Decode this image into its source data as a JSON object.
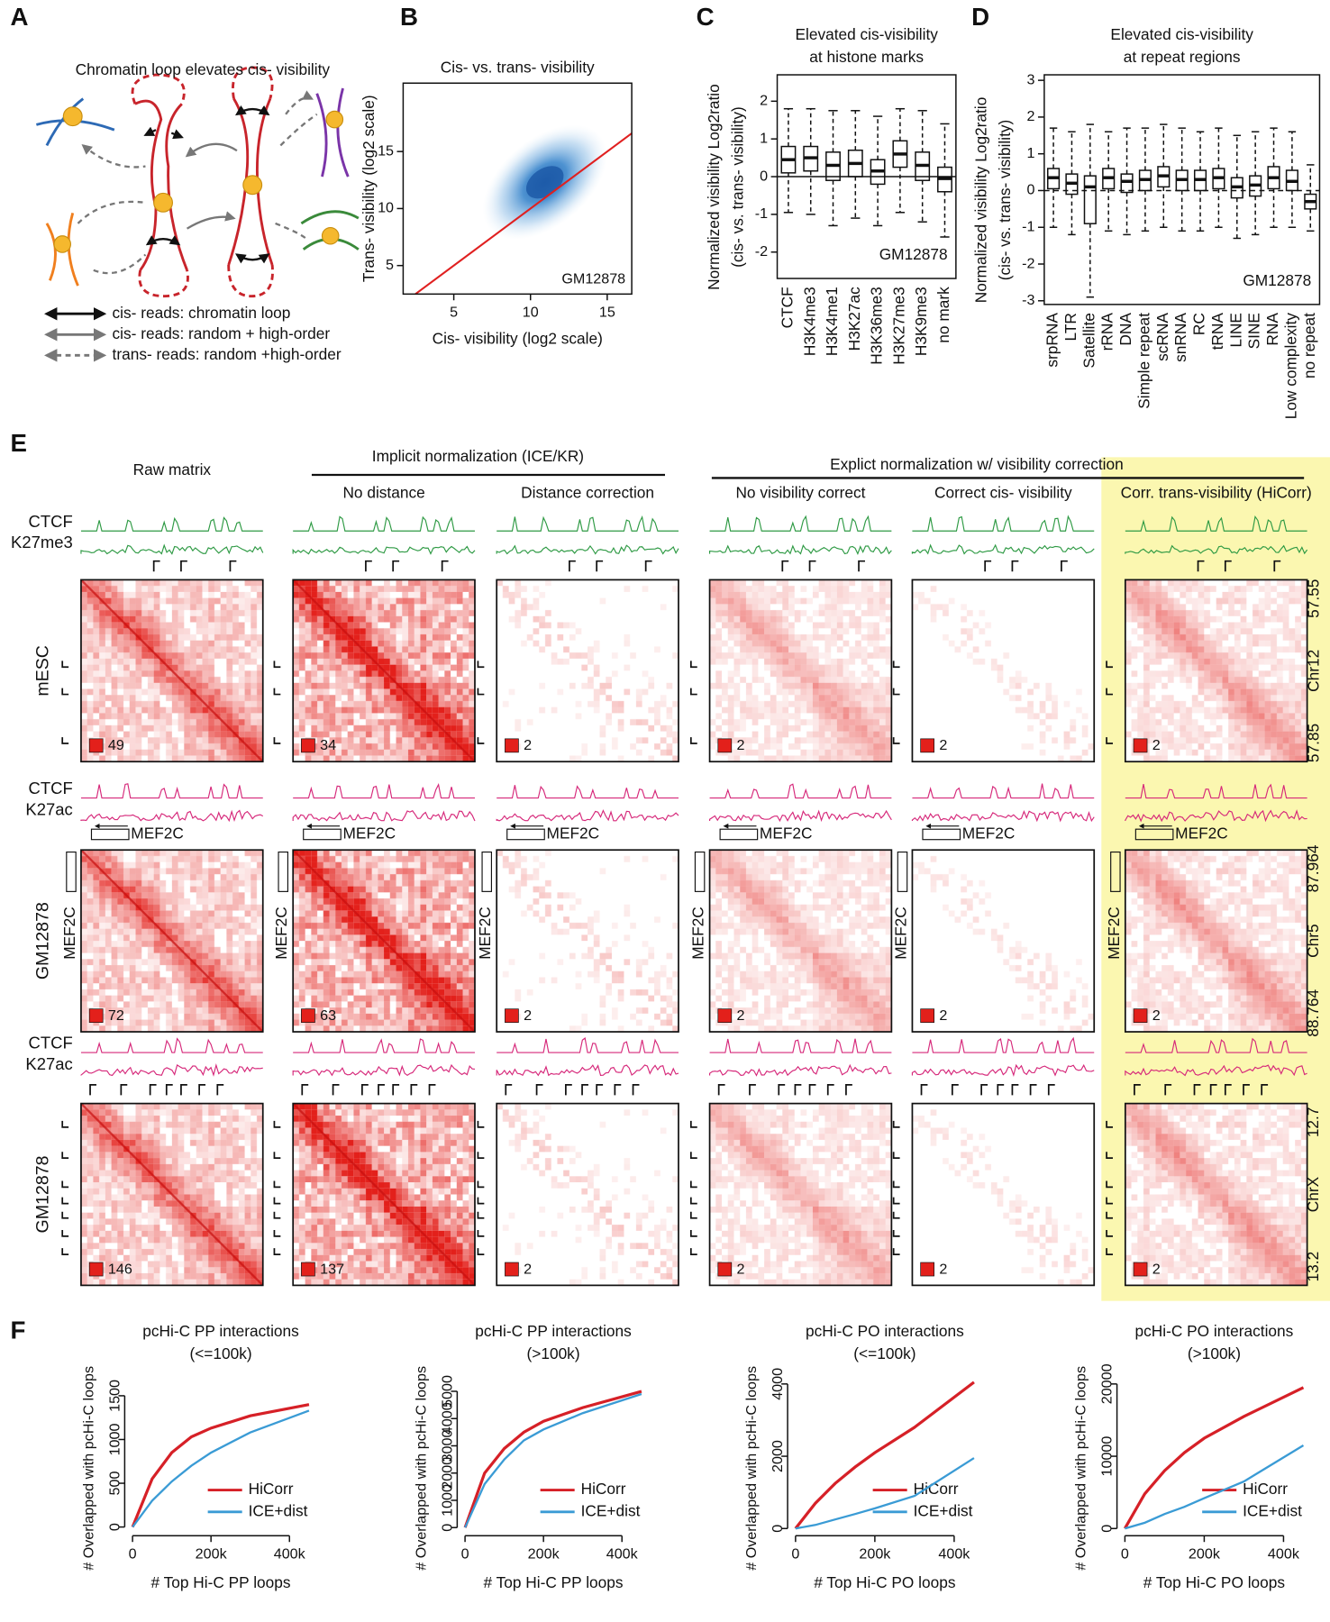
{
  "panel_labels": [
    "A",
    "B",
    "C",
    "D",
    "E",
    "F"
  ],
  "panel_a": {
    "title": "Chromatin loop elevates cis- visibility",
    "legend": [
      "cis- reads: chromatin loop",
      "cis- reads: random + high-order",
      "trans- reads: random +high-order"
    ]
  },
  "panel_e": {
    "columns": [
      "Raw matrix",
      "No distance",
      "Distance correction",
      "No visibility correct",
      "Correct cis- visibility",
      "Corr. trans-visibility (HiCorr)"
    ],
    "group_headers": [
      "Implicit normalization (ICE/KR)",
      "Explict normalization w/ visibility correction"
    ],
    "rows": [
      {
        "cell": "mESC",
        "color": "#2e9a44",
        "tracks": [
          "CTCF",
          "K27me3"
        ],
        "coords": [
          "57.55",
          "Chr12",
          "57.85"
        ],
        "scale_max": [
          49,
          34,
          2,
          2,
          2,
          2
        ]
      },
      {
        "cell": "GM12878",
        "color": "#d6287a",
        "tracks": [
          "CTCF",
          "K27ac"
        ],
        "gene": "MEF2C",
        "coords": [
          "87.964",
          "Chr5",
          "88.764"
        ],
        "scale_max": [
          72,
          63,
          2,
          2,
          2,
          2
        ]
      },
      {
        "cell": "GM12878",
        "color": "#d6287a",
        "tracks": [
          "CTCF",
          "K27ac"
        ],
        "coords": [
          "12.7",
          "ChrX",
          "13.2"
        ],
        "scale_max": [
          146,
          137,
          2,
          2,
          2,
          2
        ]
      }
    ]
  },
  "chart_data": [
    {
      "type": "density",
      "title": "Cis- vs. trans- visibility",
      "x_label": "Cis- visibility (log2 scale)",
      "y_label": "Trans- visibility (log2 scale)",
      "annotation": "GM12878",
      "xlim": [
        1.7,
        16.6
      ],
      "ylim": [
        2.5,
        21
      ],
      "xticks": [
        5,
        10,
        15
      ],
      "yticks": [
        5,
        10,
        15
      ],
      "line_color": "#e02020"
    },
    {
      "type": "box",
      "title": [
        "Elevated cis-visibility",
        "at histone marks"
      ],
      "y_label": [
        "Normalized visibility Log2ratio",
        "(cis- vs. trans- visibility)"
      ],
      "annotation": "GM12878",
      "categories": [
        "CTCF",
        "H3K4me3",
        "H3K4me1",
        "H3K27ac",
        "H3K36me3",
        "H3K27me3",
        "H3K9me3",
        "no mark"
      ],
      "whisker_high": [
        1.8,
        1.8,
        1.75,
        1.75,
        1.6,
        1.8,
        1.75,
        1.4
      ],
      "q3": [
        0.8,
        0.8,
        0.65,
        0.7,
        0.45,
        0.95,
        0.65,
        0.25
      ],
      "median": [
        0.45,
        0.5,
        0.3,
        0.35,
        0.15,
        0.6,
        0.3,
        -0.05
      ],
      "q1": [
        0.1,
        0.15,
        -0.1,
        0.0,
        -0.2,
        0.25,
        -0.1,
        -0.4
      ],
      "whisker_low": [
        -0.95,
        -1.0,
        -1.3,
        -1.1,
        -1.3,
        -0.95,
        -1.2,
        -1.6
      ],
      "ylim": [
        -2.7,
        2.7
      ],
      "yticks": [
        -2,
        -1,
        0,
        1,
        2
      ],
      "zero_line": "solid"
    },
    {
      "type": "box",
      "title": [
        "Elevated cis-visibility",
        "at repeat regions"
      ],
      "y_label": [
        "Normalized visibility Log2ratio",
        "(cis- vs. trans- visibility)"
      ],
      "annotation": "GM12878",
      "categories": [
        "srpRNA",
        "LTR",
        "Satellite",
        "rRNA",
        "DNA",
        "Simple repeat",
        "scRNA",
        "snRNA",
        "RC",
        "tRNA",
        "LINE",
        "SINE",
        "RNA",
        "Low complexity",
        "no repeat"
      ],
      "whisker_high": [
        1.7,
        1.6,
        1.8,
        1.6,
        1.7,
        1.7,
        1.8,
        1.7,
        1.6,
        1.7,
        1.5,
        1.6,
        1.7,
        1.6,
        0.7
      ],
      "q3": [
        0.6,
        0.45,
        0.4,
        0.6,
        0.45,
        0.55,
        0.65,
        0.55,
        0.55,
        0.6,
        0.35,
        0.4,
        0.65,
        0.55,
        -0.1
      ],
      "median": [
        0.35,
        0.2,
        0.1,
        0.35,
        0.25,
        0.3,
        0.4,
        0.3,
        0.3,
        0.35,
        0.1,
        0.15,
        0.35,
        0.25,
        -0.3
      ],
      "q1": [
        0.05,
        -0.1,
        -0.9,
        0.05,
        -0.05,
        0.0,
        0.1,
        0.0,
        0.0,
        0.05,
        -0.2,
        -0.15,
        0.05,
        0.0,
        -0.5
      ],
      "whisker_low": [
        -1.0,
        -1.2,
        -2.9,
        -1.1,
        -1.2,
        -1.1,
        -1.0,
        -1.1,
        -1.1,
        -1.0,
        -1.3,
        -1.2,
        -1.0,
        -1.0,
        -1.1
      ],
      "ylim": [
        -3.1,
        3.15
      ],
      "yticks": [
        -3,
        -2,
        -1,
        0,
        1,
        2,
        3
      ],
      "zero_line": "dashed"
    },
    {
      "type": "line",
      "title": "pcHi-C PP interactions",
      "subtitle": "(<=100k)",
      "x_label": "# Top Hi-C PP loops",
      "y_label": "# Overlapped with pcHi-C loops",
      "x": [
        0,
        50000,
        100000,
        150000,
        200000,
        300000,
        450000
      ],
      "series": [
        {
          "name": "HiCorr",
          "color": "#d62027",
          "values": [
            0,
            550,
            850,
            1030,
            1130,
            1270,
            1400
          ]
        },
        {
          "name": "ICE+dist",
          "color": "#3a9bd5",
          "values": [
            0,
            300,
            520,
            700,
            850,
            1080,
            1330
          ]
        }
      ],
      "xlim": [
        -20000,
        470000
      ],
      "ylim": [
        -100,
        1800
      ],
      "xticks": [
        0,
        {
          "value": 200000,
          "label": "200k"
        },
        {
          "value": 400000,
          "label": "400k"
        }
      ],
      "yticks": [
        0,
        500,
        1000,
        1500
      ]
    },
    {
      "type": "line",
      "title": "pcHi-C PP interactions",
      "subtitle": "(>100k)",
      "x_label": "# Top Hi-C PP loops",
      "y_label": "# Overlapped with pcHi-C loops",
      "x": [
        0,
        50000,
        100000,
        150000,
        200000,
        300000,
        450000
      ],
      "series": [
        {
          "name": "HiCorr",
          "color": "#d62027",
          "values": [
            0,
            2000,
            2900,
            3500,
            3900,
            4400,
            5000
          ]
        },
        {
          "name": "ICE+dist",
          "color": "#3a9bd5",
          "values": [
            0,
            1600,
            2500,
            3200,
            3600,
            4200,
            4900
          ]
        }
      ],
      "xlim": [
        -20000,
        470000
      ],
      "ylim": [
        -300,
        5800
      ],
      "xticks": [
        0,
        {
          "value": 200000,
          "label": "200k"
        },
        {
          "value": 400000,
          "label": "400k"
        }
      ],
      "yticks": [
        0,
        1000,
        2000,
        3000,
        4000,
        5000
      ]
    },
    {
      "type": "line",
      "title": "pcHi-C PO interactions",
      "subtitle": "(<=100k)",
      "x_label": "# Top Hi-C PO loops",
      "y_label": "# Overlapped with pcHi-C loops",
      "x": [
        0,
        50000,
        100000,
        150000,
        200000,
        300000,
        450000
      ],
      "series": [
        {
          "name": "HiCorr",
          "color": "#d62027",
          "values": [
            0,
            700,
            1250,
            1700,
            2100,
            2800,
            4050
          ]
        },
        {
          "name": "ICE+dist",
          "color": "#3a9bd5",
          "values": [
            0,
            100,
            250,
            400,
            560,
            900,
            1950
          ]
        }
      ],
      "xlim": [
        -20000,
        470000
      ],
      "ylim": [
        -200,
        4400
      ],
      "xticks": [
        0,
        {
          "value": 200000,
          "label": "200k"
        },
        {
          "value": 400000,
          "label": "400k"
        }
      ],
      "yticks": [
        0,
        2000,
        4000
      ]
    },
    {
      "type": "line",
      "title": "pcHi-C PO interactions",
      "subtitle": "(>100k)",
      "x_label": "# Top Hi-C PO loops",
      "y_label": "# Overlapped with pcHi-C loops",
      "x": [
        0,
        50000,
        100000,
        150000,
        200000,
        300000,
        450000
      ],
      "series": [
        {
          "name": "HiCorr",
          "color": "#d62027",
          "values": [
            0,
            4800,
            8000,
            10500,
            12500,
            15500,
            19500
          ]
        },
        {
          "name": "ICE+dist",
          "color": "#3a9bd5",
          "values": [
            0,
            800,
            2000,
            3000,
            4200,
            6500,
            11500
          ]
        }
      ],
      "xlim": [
        -20000,
        470000
      ],
      "ylim": [
        -1000,
        22000
      ],
      "xticks": [
        0,
        {
          "value": 200000,
          "label": "200k"
        },
        {
          "value": 400000,
          "label": "400k"
        }
      ],
      "yticks": [
        0,
        10000,
        20000
      ]
    }
  ]
}
